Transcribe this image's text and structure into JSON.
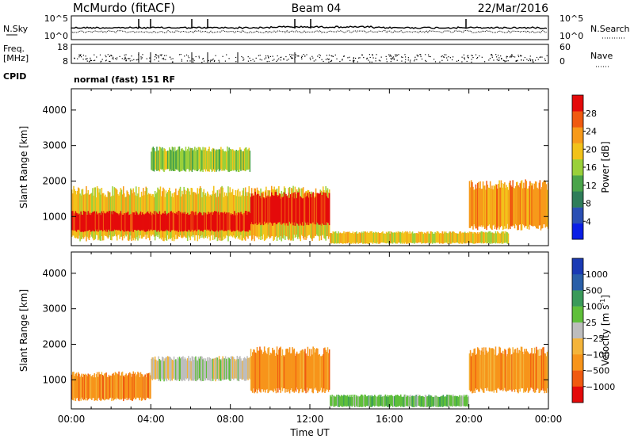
{
  "header": {
    "station": "McMurdo (fitACF)",
    "beam": "Beam 04",
    "date": "22/Mar/2016"
  },
  "noise_panel": {
    "left_label": "N.Sky",
    "right_label": "N.Search",
    "left_ticks": [
      "10^5",
      "10^0"
    ],
    "right_ticks": [
      "10^5",
      "10^0"
    ]
  },
  "freq_panel": {
    "left_label_line1": "Freq.",
    "left_label_line2": "[MHz]",
    "right_label": "Nave",
    "left_ticks": [
      "18",
      "8"
    ],
    "right_ticks": [
      "60",
      "0"
    ]
  },
  "cpid": {
    "label": "CPID",
    "value": "normal (fast) 151 RF"
  },
  "colors": {
    "power_scale": [
      "#0a1ee6",
      "#2a4fb4",
      "#2f7d5a",
      "#4aa44a",
      "#9ad03a",
      "#f2c21a",
      "#f79a1a",
      "#f05a10",
      "#e40a0a"
    ],
    "velocity_scale": [
      "#e40a0a",
      "#f05a10",
      "#f7941a",
      "#f4b43a",
      "#bdbdbd",
      "#5fbf3a",
      "#3a9a5a",
      "#2a5fa8",
      "#1a3ab4"
    ]
  },
  "chart_data": [
    {
      "type": "heatmap",
      "quantity": "Power",
      "xlabel": "",
      "ylabel": "Slant Range [km]",
      "xlim": [
        "00:00",
        "00:00"
      ],
      "ylim": [
        180,
        4600
      ],
      "y_ticks": [
        1000,
        2000,
        3000,
        4000
      ],
      "colorbar_label": "Power [dB]",
      "colorbar_ticks": [
        4,
        8,
        12,
        16,
        20,
        24,
        28
      ],
      "colorbar_range": [
        0,
        30
      ],
      "regions": [
        {
          "t0": 0.0,
          "t1": 13.0,
          "r0": 400,
          "r1": 1700,
          "level_db": 16
        },
        {
          "t0": 0.0,
          "t1": 9.0,
          "r0": 600,
          "r1": 1100,
          "level_db": 27
        },
        {
          "t0": 9.0,
          "t1": 13.0,
          "r0": 800,
          "r1": 1600,
          "level_db": 28
        },
        {
          "t0": 13.0,
          "t1": 22.0,
          "r0": 250,
          "r1": 550,
          "level_db": 18
        },
        {
          "t0": 20.0,
          "t1": 24.0,
          "r0": 700,
          "r1": 1900,
          "level_db": 20
        },
        {
          "t0": 4.0,
          "t1": 9.0,
          "r0": 2300,
          "r1": 2900,
          "level_db": 14
        }
      ]
    },
    {
      "type": "heatmap",
      "quantity": "Velocity",
      "xlabel": "Time UT",
      "ylabel": "Slant Range [km]",
      "x_ticks": [
        "00:00",
        "04:00",
        "08:00",
        "12:00",
        "16:00",
        "20:00",
        "00:00"
      ],
      "ylim": [
        180,
        4600
      ],
      "y_ticks": [
        1000,
        2000,
        3000,
        4000
      ],
      "colorbar_label": "Velocity [m s",
      "colorbar_unit_sup": "-1",
      "colorbar_unit_close": "]",
      "colorbar_ticks": [
        "1000",
        "500",
        "100",
        "25",
        "−25",
        "−100",
        "−500",
        "−1000"
      ],
      "regions": [
        {
          "t0": 0.0,
          "t1": 4.0,
          "r0": 450,
          "r1": 1150,
          "level_ms": -100
        },
        {
          "t0": 4.0,
          "t1": 9.0,
          "r0": 1000,
          "r1": 1600,
          "level_ms": 25
        },
        {
          "t0": 9.0,
          "t1": 13.0,
          "r0": 700,
          "r1": 1800,
          "level_ms": -100
        },
        {
          "t0": 13.0,
          "t1": 20.0,
          "r0": 250,
          "r1": 550,
          "level_ms": 100
        },
        {
          "t0": 20.0,
          "t1": 24.0,
          "r0": 700,
          "r1": 1800,
          "level_ms": -300
        }
      ]
    }
  ]
}
